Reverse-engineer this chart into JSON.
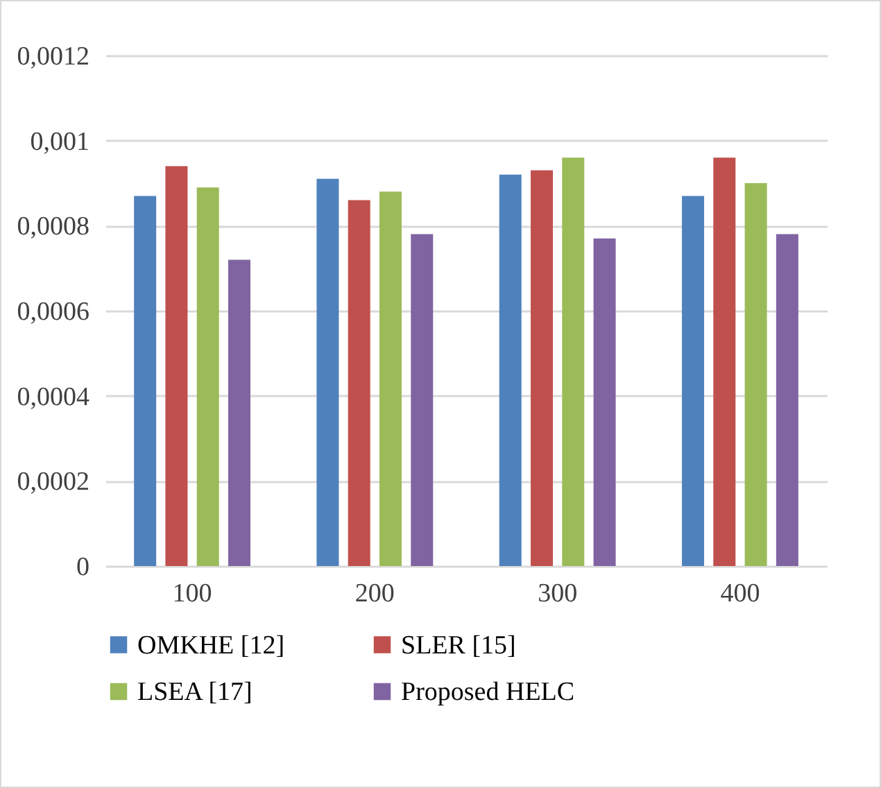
{
  "chart_data": {
    "type": "bar",
    "categories": [
      "100",
      "200",
      "300",
      "400"
    ],
    "series": [
      {
        "name": "OMKHE [12]",
        "color": "#4f81bd",
        "values": [
          0.00087,
          0.00091,
          0.00092,
          0.00087
        ]
      },
      {
        "name": "SLER [15]",
        "color": "#c0504d",
        "values": [
          0.00094,
          0.00086,
          0.00093,
          0.00096
        ]
      },
      {
        "name": "LSEA [17]",
        "color": "#9bbb59",
        "values": [
          0.00089,
          0.00088,
          0.00096,
          0.0009
        ]
      },
      {
        "name": "Proposed HELC",
        "color": "#8064a2",
        "values": [
          0.00072,
          0.00078,
          0.00077,
          0.00078
        ]
      }
    ],
    "ylim": [
      0,
      0.0012
    ],
    "yticks": [
      {
        "value": 0,
        "label": "0"
      },
      {
        "value": 0.0002,
        "label": "0,0002"
      },
      {
        "value": 0.0004,
        "label": "0,0004"
      },
      {
        "value": 0.0006,
        "label": "0,0006"
      },
      {
        "value": 0.0008,
        "label": "0,0008"
      },
      {
        "value": 0.001,
        "label": "0,001"
      },
      {
        "value": 0.0012,
        "label": "0,0012"
      }
    ],
    "grid": "y",
    "legend": "bottom"
  }
}
